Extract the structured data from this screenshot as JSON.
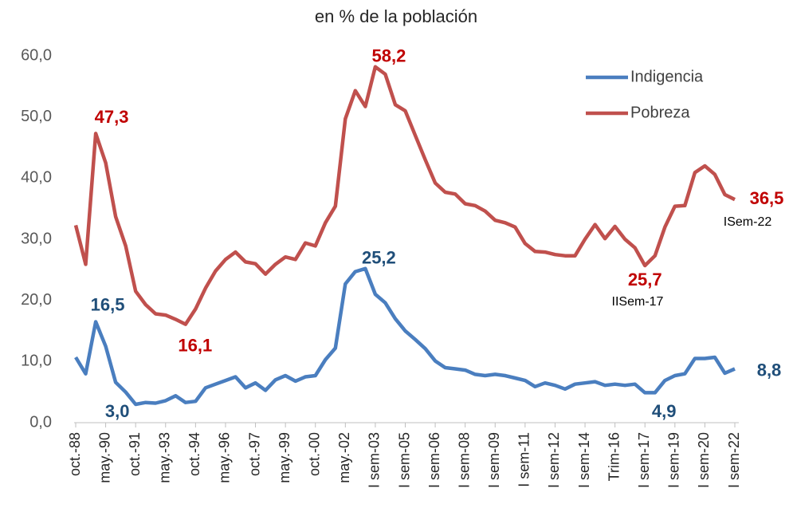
{
  "chart_data": {
    "type": "line",
    "subtitle": "en % de la población",
    "categories": [
      "oct.-88",
      null,
      null,
      "may.-90",
      null,
      null,
      "oct.-91",
      null,
      null,
      "may.-93",
      null,
      null,
      "oct.-94",
      null,
      null,
      "may.-96",
      null,
      null,
      "oct.-97",
      null,
      null,
      "may.-99",
      null,
      null,
      "oct.-00",
      null,
      null,
      "may.-02",
      null,
      null,
      "I sem-03",
      null,
      null,
      "I sem-05",
      null,
      null,
      "I sem-06",
      null,
      null,
      "I sem-08",
      null,
      null,
      "I sem-09",
      null,
      null,
      "I sem-11",
      null,
      null,
      "I sem-12",
      null,
      null,
      "I sem-14",
      null,
      null,
      "Trim-16",
      null,
      null,
      "I sem-17",
      null,
      null,
      "I sem-19",
      null,
      null,
      "I sem-20",
      null,
      null,
      "I sem-22"
    ],
    "series": [
      {
        "name": "Indigencia",
        "color": "#4a7ebf",
        "label_color": "#1f4e79",
        "values": [
          10.7,
          8.0,
          16.5,
          12.5,
          6.6,
          5.0,
          3.0,
          3.3,
          3.2,
          3.6,
          4.4,
          3.3,
          3.5,
          5.7,
          6.3,
          6.9,
          7.5,
          5.7,
          6.5,
          5.3,
          7.0,
          7.7,
          6.8,
          7.5,
          7.7,
          10.3,
          12.2,
          22.7,
          24.7,
          25.2,
          21.0,
          19.6,
          17.0,
          15.0,
          13.6,
          12.1,
          10.1,
          9.0,
          8.8,
          8.6,
          7.9,
          7.7,
          7.9,
          7.7,
          7.3,
          6.9,
          5.9,
          6.5,
          6.1,
          5.5,
          6.3,
          6.5,
          6.7,
          6.1,
          6.3,
          6.1,
          6.3,
          4.9,
          4.9,
          6.9,
          7.7,
          8.0,
          10.5,
          10.5,
          10.7,
          8.1,
          8.8
        ],
        "value_labels": [
          null,
          null,
          "16,5",
          null,
          null,
          null,
          "3,0",
          null,
          null,
          null,
          null,
          null,
          null,
          null,
          null,
          null,
          null,
          null,
          null,
          null,
          null,
          null,
          null,
          null,
          null,
          null,
          null,
          null,
          null,
          "25,2",
          null,
          null,
          null,
          null,
          null,
          null,
          null,
          null,
          null,
          null,
          null,
          null,
          null,
          null,
          null,
          null,
          null,
          null,
          null,
          null,
          null,
          null,
          null,
          null,
          null,
          null,
          null,
          "4,9",
          null,
          null,
          null,
          null,
          null,
          null,
          null,
          null,
          "8,8"
        ]
      },
      {
        "name": "Pobreza",
        "color": "#c0504d",
        "label_color": "#c00000",
        "values": [
          32.3,
          25.9,
          47.3,
          42.5,
          33.7,
          28.9,
          21.5,
          19.3,
          17.8,
          17.6,
          16.9,
          16.1,
          18.6,
          22.0,
          24.8,
          26.7,
          27.9,
          26.3,
          26.0,
          24.3,
          25.9,
          27.1,
          26.7,
          29.4,
          28.9,
          32.7,
          35.4,
          49.7,
          54.3,
          51.7,
          58.2,
          57.0,
          52.0,
          51.0,
          47.0,
          43.0,
          39.2,
          37.7,
          37.4,
          35.8,
          35.5,
          34.6,
          33.1,
          32.7,
          32.0,
          29.3,
          28.0,
          27.9,
          27.5,
          27.3,
          27.3,
          30.0,
          32.4,
          30.1,
          32.1,
          30.0,
          28.6,
          25.7,
          27.3,
          32.0,
          35.4,
          35.5,
          40.9,
          42.0,
          40.6,
          37.3,
          36.5
        ],
        "value_labels": [
          null,
          null,
          "47,3",
          null,
          null,
          null,
          null,
          null,
          null,
          null,
          null,
          "16,1",
          null,
          null,
          null,
          null,
          null,
          null,
          null,
          null,
          null,
          null,
          null,
          null,
          null,
          null,
          null,
          null,
          null,
          null,
          "58,2",
          null,
          null,
          null,
          null,
          null,
          null,
          null,
          null,
          null,
          null,
          null,
          null,
          null,
          null,
          null,
          null,
          null,
          null,
          null,
          null,
          null,
          null,
          null,
          null,
          null,
          null,
          "25,7",
          null,
          null,
          null,
          null,
          null,
          null,
          null,
          null,
          "36,5"
        ]
      }
    ],
    "annotations": [
      "IISem-17",
      "ISem-22"
    ],
    "ylim": [
      0,
      60
    ],
    "yticks": [
      {
        "value": 0,
        "label": "0,0"
      },
      {
        "value": 10,
        "label": "10,0"
      },
      {
        "value": 20,
        "label": "20,0"
      },
      {
        "value": 30,
        "label": "30,0"
      },
      {
        "value": 40,
        "label": "40,0"
      },
      {
        "value": 50,
        "label": "50,0"
      },
      {
        "value": 60,
        "label": "60,0"
      }
    ],
    "grid": false,
    "legend": "upper right"
  }
}
